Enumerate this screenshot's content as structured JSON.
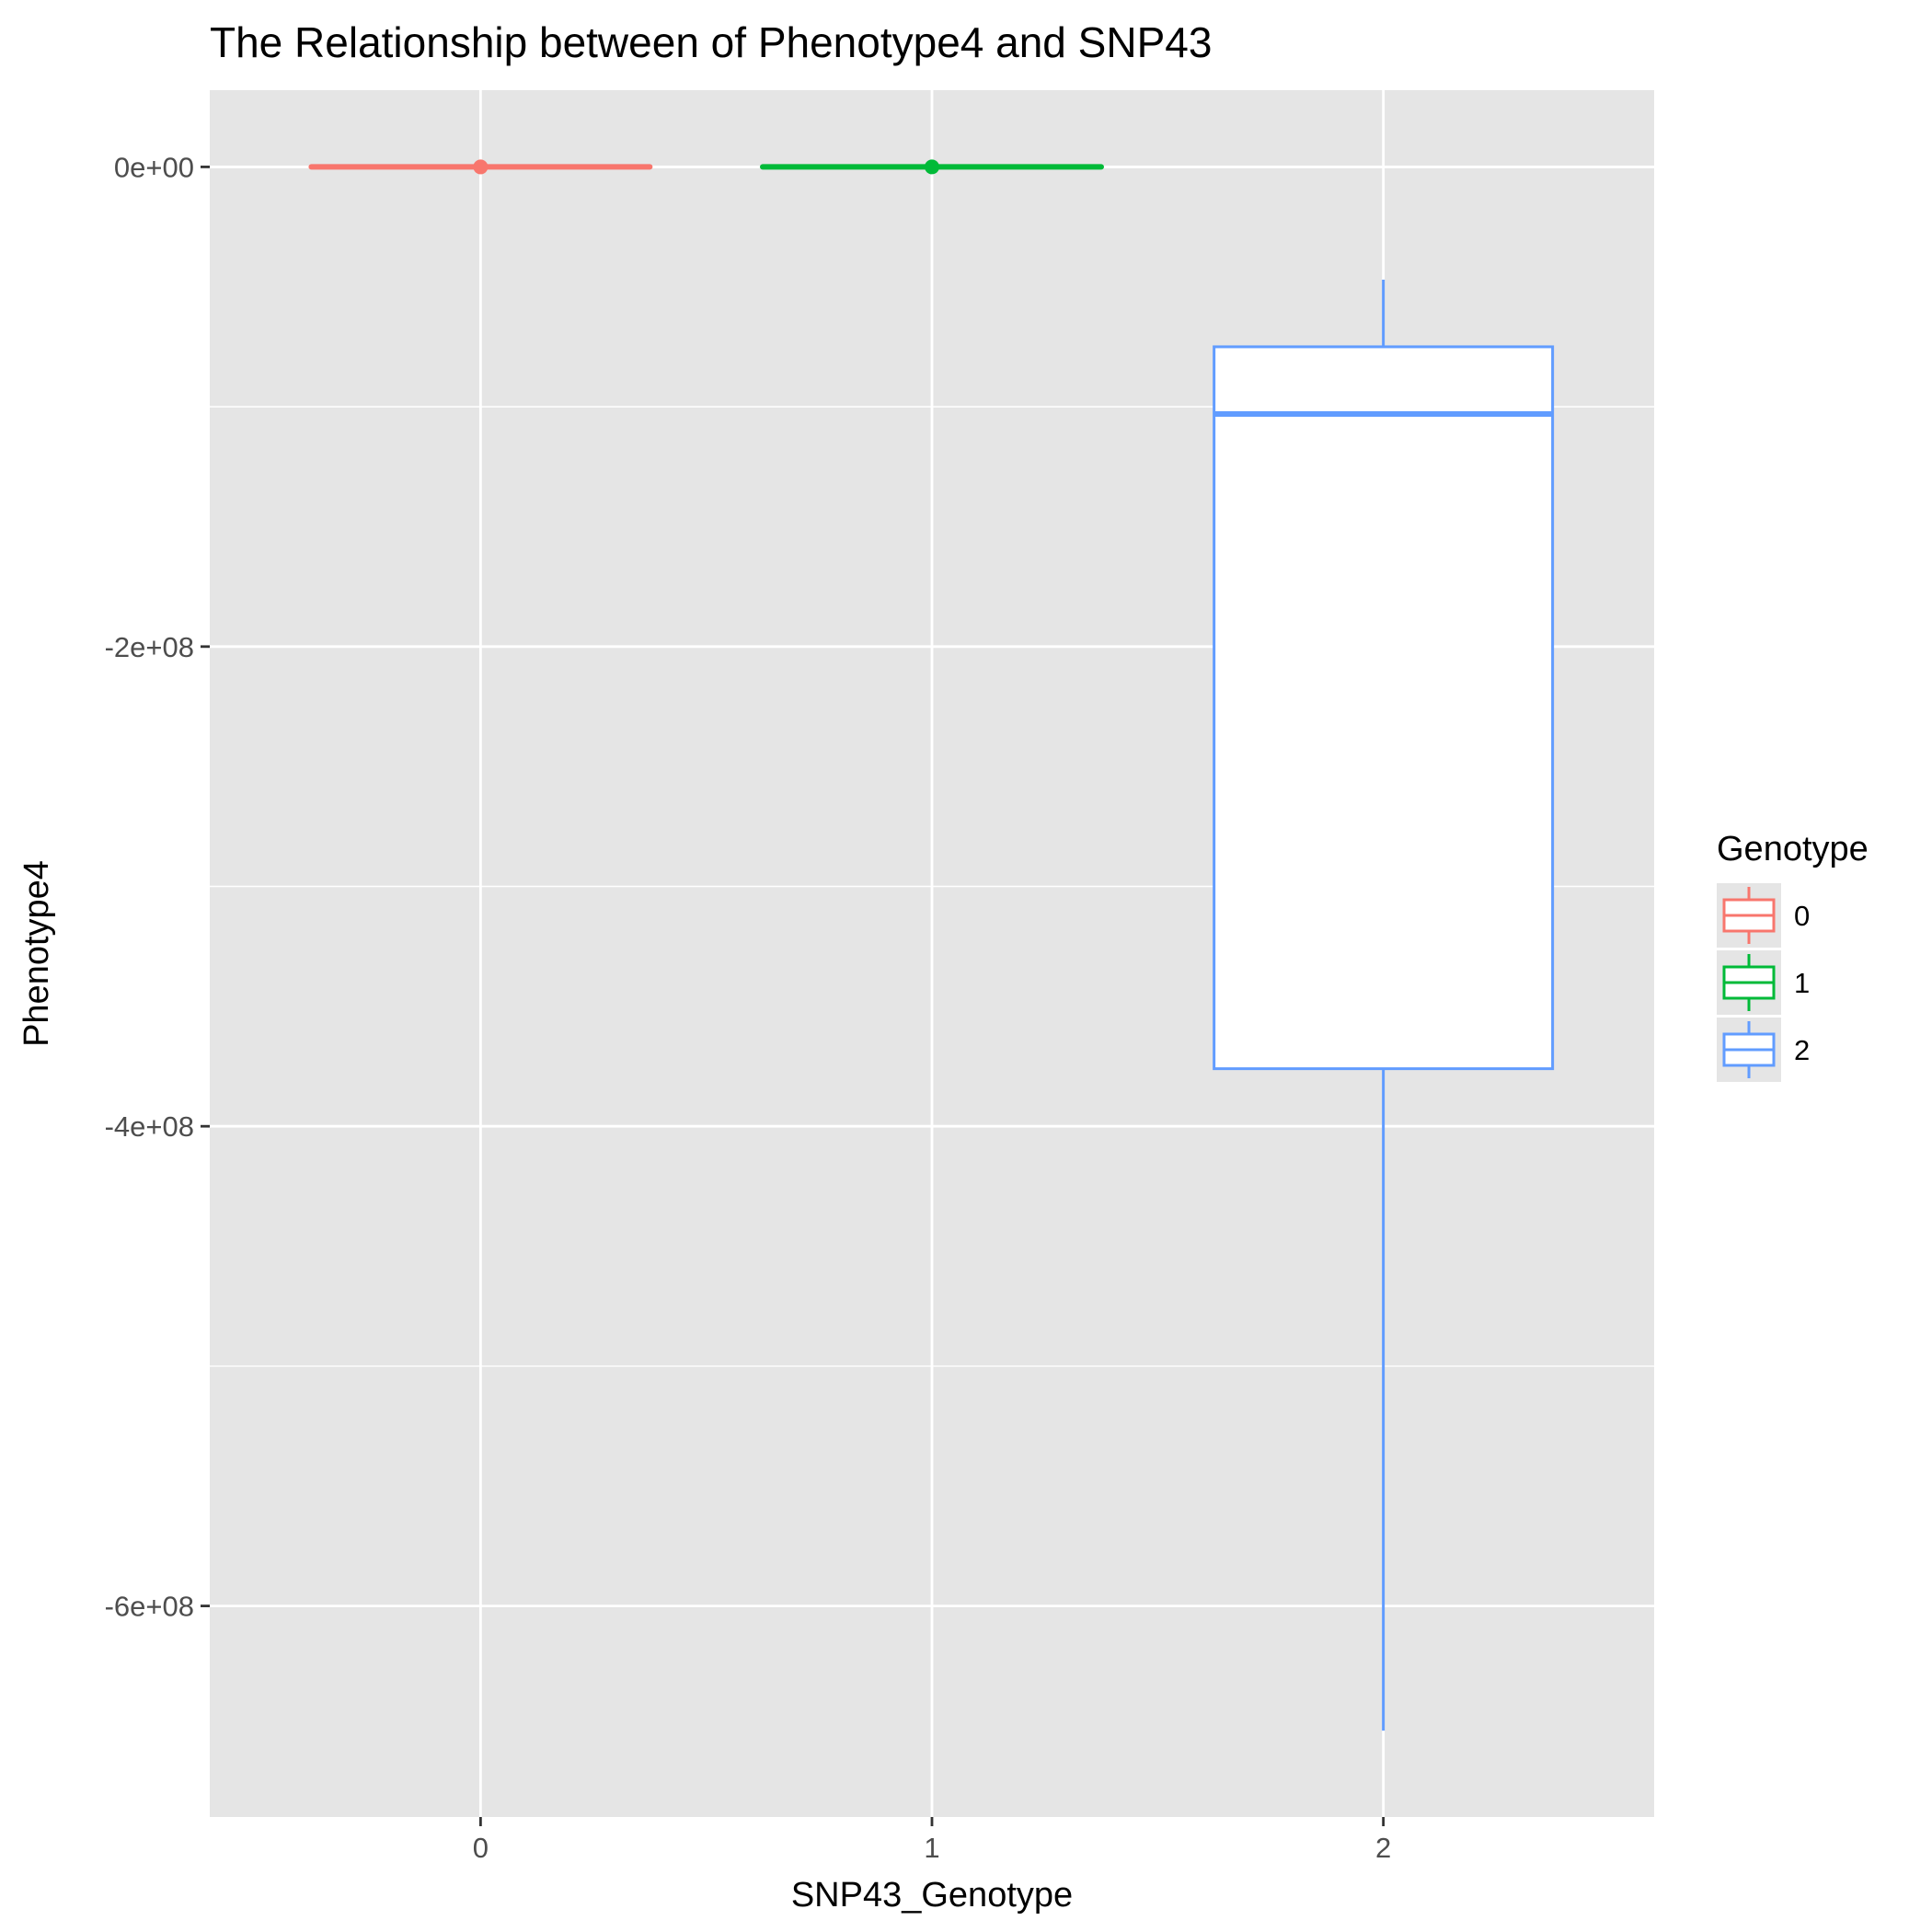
{
  "chart_data": {
    "type": "boxplot",
    "title": "The Relationship between of Phenotype4 and SNP43",
    "xlabel": "SNP43_Genotype",
    "ylabel": "Phenotype4",
    "categories": [
      "0",
      "1",
      "2"
    ],
    "ylim": [
      -688000000,
      32000000
    ],
    "yticks": [
      {
        "value": 0,
        "label": "0e+00"
      },
      {
        "value": -200000000,
        "label": "-2e+08"
      },
      {
        "value": -400000000,
        "label": "-4e+08"
      },
      {
        "value": -600000000,
        "label": "-6e+08"
      }
    ],
    "y_minor_gridlines": [
      -100000000,
      -300000000,
      -500000000
    ],
    "grid": true,
    "boxes": [
      {
        "category": "0",
        "min": 0,
        "q1": 0,
        "median": 0,
        "q3": 0,
        "max": 0,
        "color": "#F8766D"
      },
      {
        "category": "1",
        "min": 0,
        "q1": 0,
        "median": 0,
        "q3": 0,
        "max": 0,
        "color": "#00BA38"
      },
      {
        "category": "2",
        "min": -652000000,
        "q1": -376000000,
        "median": -103000000,
        "q3": -75000000,
        "max": -47000000,
        "color": "#619CFF"
      }
    ],
    "legend": {
      "title": "Genotype",
      "position": "right",
      "items": [
        {
          "label": "0",
          "color": "#F8766D"
        },
        {
          "label": "1",
          "color": "#00BA38"
        },
        {
          "label": "2",
          "color": "#619CFF"
        }
      ]
    },
    "colors": {
      "panel_background": "#E5E5E5",
      "grid": "#FFFFFF"
    }
  }
}
